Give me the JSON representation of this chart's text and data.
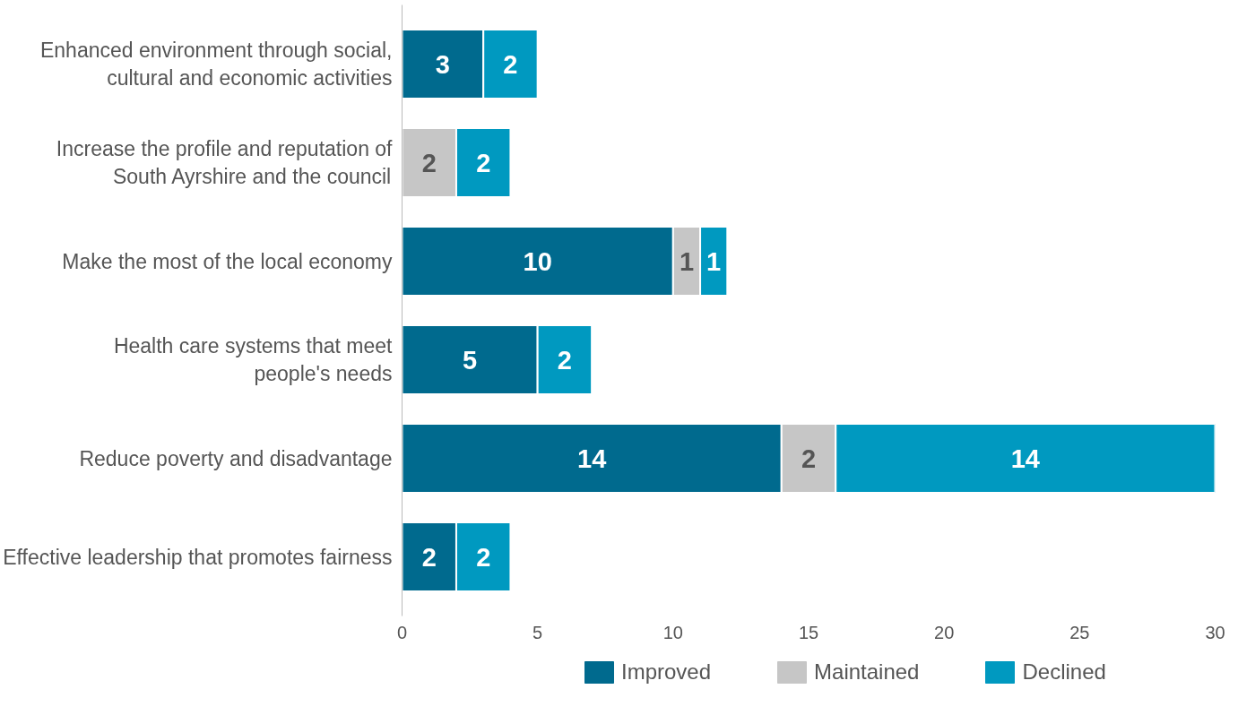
{
  "chart_data": {
    "type": "bar",
    "orientation": "horizontal",
    "stacked": true,
    "categories": [
      "Enhanced environment through social,\ncultural and economic activities",
      "Increase the profile and reputation of\nSouth Ayrshire and the council",
      "Make the most of the local economy",
      "Health care systems that meet\npeople's needs",
      "Reduce poverty and disadvantage",
      "Effective leadership that promotes fairness"
    ],
    "series": [
      {
        "name": "Improved",
        "color": "#006a8e",
        "values": [
          3,
          null,
          10,
          5,
          14,
          2
        ]
      },
      {
        "name": "Maintained",
        "color": "#c6c6c6",
        "values": [
          null,
          2,
          1,
          null,
          2,
          null
        ]
      },
      {
        "name": "Declined",
        "color": "#0099c0",
        "values": [
          2,
          2,
          1,
          2,
          14,
          2
        ]
      }
    ],
    "xlim": [
      0,
      30
    ],
    "xticks": [
      0,
      5,
      10,
      15,
      20,
      25,
      30
    ],
    "grid": false,
    "legend": "bottom",
    "data_labels": true
  }
}
